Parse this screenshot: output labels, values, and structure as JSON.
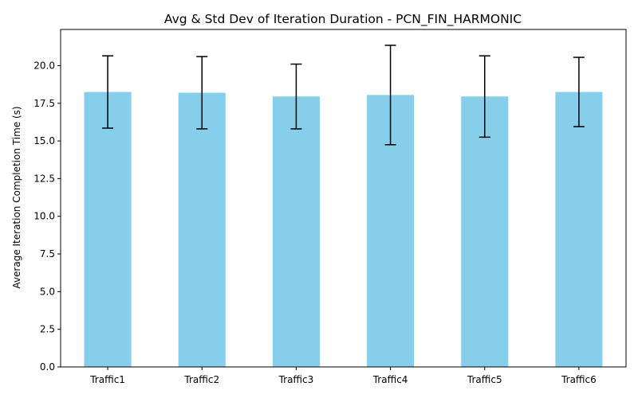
{
  "chart_data": {
    "type": "bar",
    "title": "Avg & Std Dev of Iteration Duration - PCN_FIN_HARMONIC",
    "xlabel": "",
    "ylabel": "Average Iteration Completion Time (s)",
    "categories": [
      "Traffic1",
      "Traffic2",
      "Traffic3",
      "Traffic4",
      "Traffic5",
      "Traffic6"
    ],
    "values": [
      18.25,
      18.2,
      17.95,
      18.05,
      17.95,
      18.25
    ],
    "errors": [
      2.4,
      2.4,
      2.15,
      3.3,
      2.7,
      2.3
    ],
    "ylim": [
      0,
      22.4
    ],
    "yticks": [
      "0.0",
      "2.5",
      "5.0",
      "7.5",
      "10.0",
      "12.5",
      "15.0",
      "17.5",
      "20.0"
    ],
    "bar_color": "#87ceeb",
    "error_color": "#000000",
    "grid": false,
    "legend": "none"
  }
}
